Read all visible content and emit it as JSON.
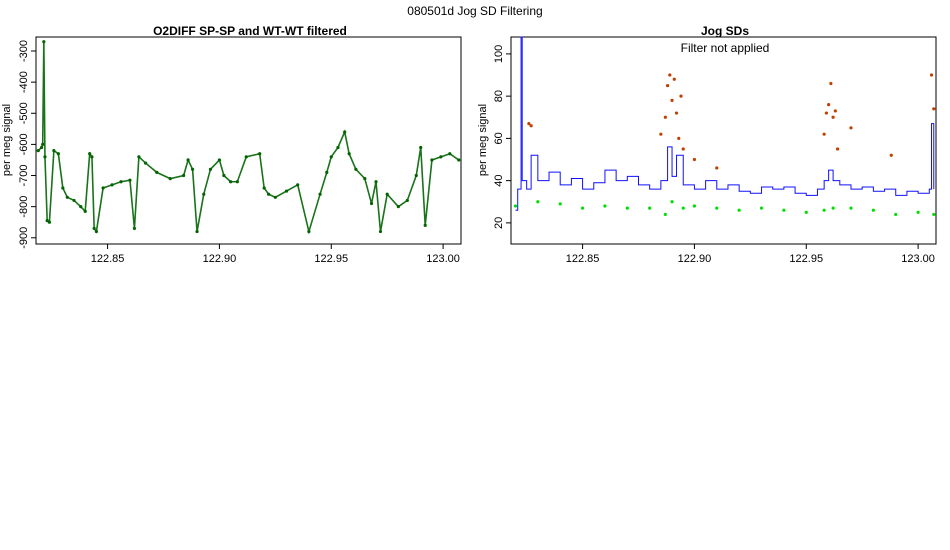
{
  "page": {
    "title": "080501d   Jog SD Filtering"
  },
  "chart_data": [
    {
      "type": "scatter",
      "title": "O2DIFF SP-SP and WT-WT filtered",
      "xlabel": "",
      "ylabel": "per meg signal",
      "xlim": [
        122.818,
        123.008
      ],
      "ylim": [
        -920,
        -255
      ],
      "y_reversed": true,
      "x_ticks": [
        122.85,
        122.9,
        122.95,
        123.0
      ],
      "x_tick_labels": [
        "122.85",
        "122.90",
        "122.95",
        "123.00"
      ],
      "y_ticks": [
        -300,
        -400,
        -500,
        -600,
        -700,
        -800,
        -900
      ],
      "y_tick_labels": [
        "-300",
        "-400",
        "-500",
        "-600",
        "-700",
        "-800",
        "-900"
      ],
      "grid": false,
      "series": [
        {
          "color": "#006400",
          "x": [
            122.819,
            122.8205,
            122.821,
            122.8215,
            122.822,
            122.823,
            122.824,
            122.826,
            122.828,
            122.83,
            122.832,
            122.835,
            122.838,
            122.84,
            122.842,
            122.843,
            122.844,
            122.845,
            122.848,
            122.852,
            122.856,
            122.86,
            122.862,
            122.864,
            122.867,
            122.872,
            122.878,
            122.884,
            122.886,
            122.888,
            122.89,
            122.893,
            122.896,
            122.9,
            122.902,
            122.905,
            122.908,
            122.912,
            122.918,
            122.92,
            122.922,
            122.925,
            122.93,
            122.935,
            122.94,
            122.945,
            122.948,
            122.95,
            122.953,
            122.956,
            122.958,
            122.961,
            122.965,
            122.968,
            122.97,
            122.972,
            122.975,
            122.98,
            122.984,
            122.988,
            122.99,
            122.992,
            122.995,
            122.999,
            123.003,
            123.007
          ],
          "y": [
            -620,
            -610,
            -600,
            -270,
            -640,
            -845,
            -850,
            -620,
            -630,
            -740,
            -770,
            -780,
            -800,
            -815,
            -630,
            -640,
            -870,
            -880,
            -740,
            -730,
            -720,
            -715,
            -870,
            -640,
            -660,
            -690,
            -710,
            -700,
            -650,
            -680,
            -880,
            -760,
            -680,
            -650,
            -700,
            -720,
            -720,
            -640,
            -630,
            -740,
            -760,
            -770,
            -750,
            -730,
            -880,
            -760,
            -690,
            -640,
            -610,
            -560,
            -630,
            -680,
            -710,
            -790,
            -720,
            -880,
            -760,
            -800,
            -780,
            -700,
            -610,
            -860,
            -650,
            -640,
            -630,
            -650
          ]
        }
      ]
    },
    {
      "type": "scatter",
      "title": "Jog SDs",
      "annotation": "Filter not applied",
      "xlabel": "",
      "ylabel": "per meg signal",
      "xlim": [
        122.818,
        123.008
      ],
      "ylim": [
        10,
        108
      ],
      "x_ticks": [
        122.85,
        122.9,
        122.95,
        123.0
      ],
      "x_tick_labels": [
        "122.85",
        "122.90",
        "122.95",
        "123.00"
      ],
      "y_ticks": [
        20,
        40,
        60,
        80,
        100
      ],
      "y_tick_labels": [
        "20",
        "40",
        "60",
        "80",
        "100"
      ],
      "grid": false,
      "series": [
        {
          "color": "#00e000",
          "x": [
            122.82,
            122.83,
            122.84,
            122.85,
            122.86,
            122.87,
            122.88,
            122.887,
            122.89,
            122.895,
            122.9,
            122.91,
            122.92,
            122.93,
            122.94,
            122.95,
            122.958,
            122.962,
            122.97,
            122.98,
            122.99,
            123.0,
            123.007
          ],
          "y": [
            28,
            30,
            29,
            27,
            28,
            27,
            27,
            24,
            30,
            27,
            28,
            27,
            26,
            27,
            26,
            25,
            26,
            27,
            27,
            26,
            24,
            25,
            24
          ]
        },
        {
          "color": "#1010ff",
          "type": "step",
          "x": [
            122.82,
            122.821,
            122.8225,
            122.823,
            122.825,
            122.827,
            122.83,
            122.835,
            122.84,
            122.845,
            122.85,
            122.855,
            122.86,
            122.865,
            122.87,
            122.875,
            122.88,
            122.885,
            122.888,
            122.89,
            122.892,
            122.895,
            122.9,
            122.905,
            122.91,
            122.915,
            122.92,
            122.925,
            122.93,
            122.935,
            122.94,
            122.945,
            122.95,
            122.955,
            122.958,
            122.96,
            122.962,
            122.965,
            122.97,
            122.975,
            122.98,
            122.985,
            122.99,
            122.995,
            123.0,
            123.005,
            123.006,
            123.007
          ],
          "y": [
            26,
            36,
            108,
            40,
            36,
            52,
            40,
            44,
            38,
            41,
            36,
            39,
            45,
            40,
            42,
            38,
            36,
            40,
            56,
            42,
            52,
            38,
            36,
            40,
            36,
            38,
            35,
            34,
            37,
            36,
            37,
            34,
            33,
            36,
            40,
            45,
            40,
            38,
            36,
            37,
            35,
            36,
            33,
            35,
            34,
            36,
            67,
            36
          ]
        },
        {
          "color": "#c04000",
          "x": [
            122.826,
            122.827,
            122.885,
            122.887,
            122.888,
            122.889,
            122.89,
            122.891,
            122.892,
            122.893,
            122.894,
            122.895,
            122.9,
            122.91,
            122.958,
            122.959,
            122.96,
            122.961,
            122.962,
            122.963,
            122.964,
            122.97,
            122.988,
            123.006,
            123.007
          ],
          "y": [
            67,
            66,
            62,
            70,
            85,
            90,
            78,
            88,
            72,
            60,
            80,
            55,
            50,
            46,
            62,
            72,
            76,
            86,
            70,
            73,
            55,
            65,
            52,
            90,
            74
          ]
        }
      ]
    }
  ]
}
